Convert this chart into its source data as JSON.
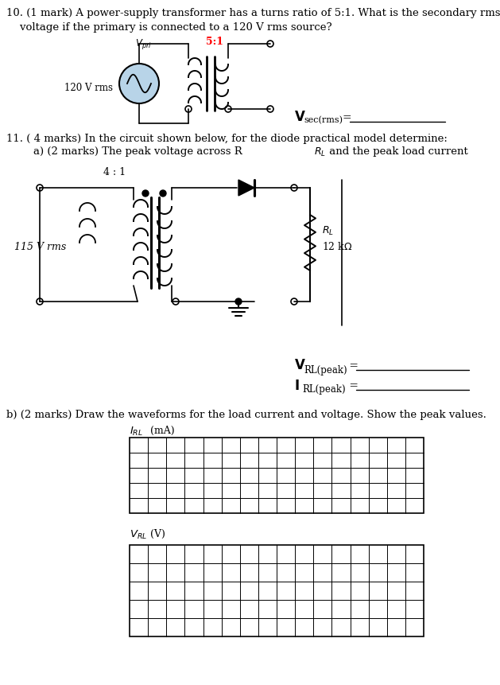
{
  "bg_color": "#ffffff",
  "q10_text1": "10. (1 mark) A power-supply transformer has a turns ratio of 5:1. What is the secondary rms",
  "q10_text2": "    voltage if the primary is connected to a 120 V rms source?",
  "turns_ratio_label": "5:1",
  "turns_ratio2": "4 : 1",
  "source2_label": "115 V rms",
  "q11_text1": "11. ( 4 marks) In the circuit shown below, for the diode practical model determine:",
  "q11_text2": "        a) (2 marks) The peak voltage across R",
  "b_text": "b) (2 marks) Draw the waveforms for the load current and voltage. Show the peak values.",
  "turns_ratio_color": "#ff0000",
  "grid_cols": 16,
  "grid_rows1": 5,
  "grid_rows2": 5
}
